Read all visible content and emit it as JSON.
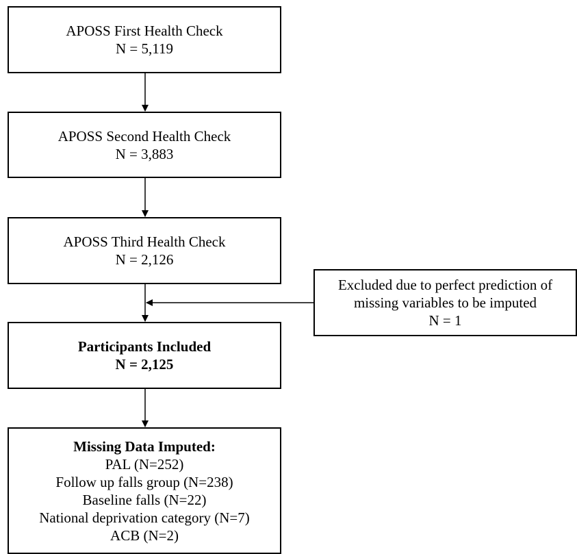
{
  "flowchart": {
    "box1": {
      "title": "APOSS First Health Check",
      "count": "N = 5,119"
    },
    "box2": {
      "title": "APOSS Second Health Check",
      "count": "N = 3,883"
    },
    "box3": {
      "title": "APOSS Third Health Check",
      "count": "N = 2,126"
    },
    "exclusion": {
      "line1": "Excluded due to perfect prediction of",
      "line2": "missing variables to be imputed",
      "count": "N = 1"
    },
    "box4": {
      "title": "Participants Included",
      "count": "N = 2,125"
    },
    "box5": {
      "title": "Missing Data Imputed:",
      "items": [
        "PAL (N=252)",
        "Follow up falls group (N=238)",
        "Baseline falls (N=22)",
        "National deprivation category (N=7)",
        "ACB (N=2)"
      ]
    }
  }
}
